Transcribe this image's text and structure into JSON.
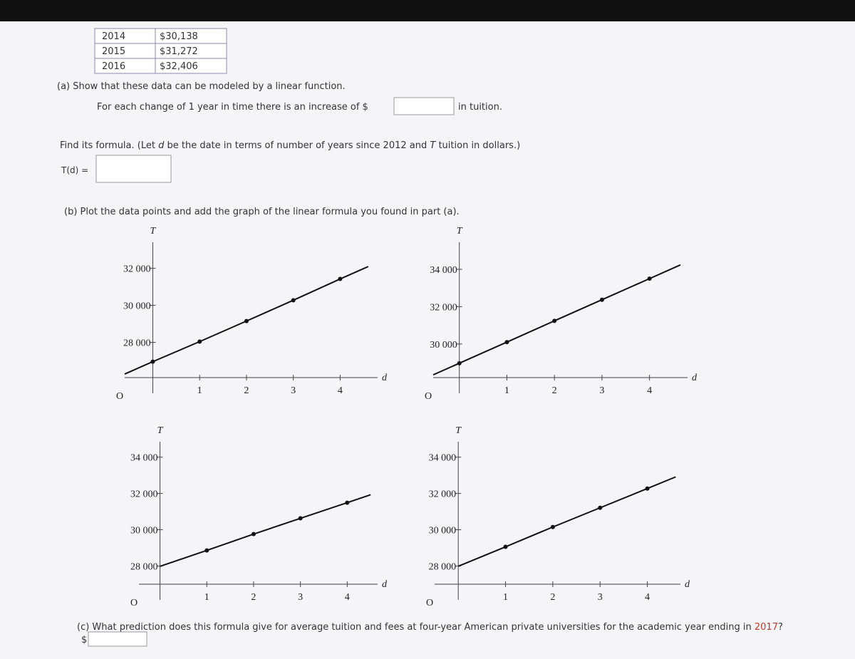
{
  "table": {
    "rows": [
      [
        "2014",
        "$30,138"
      ],
      [
        "2015",
        "$31,272"
      ],
      [
        "2016",
        "$32,406"
      ]
    ]
  },
  "part_a": {
    "prompt": "(a) Show that these data can be modeled by a linear function.",
    "increase_prefix": "For each change of 1 year in time there is an increase of $",
    "increase_suffix": "in tuition.",
    "formula_prompt": [
      "Find its formula. (Let ",
      "d",
      " be the date in terms of number of years since 2012 and ",
      "T",
      " tuition in dollars.)"
    ],
    "formula_label": "T(d) ="
  },
  "part_b": {
    "prompt": "(b) Plot the data points and add the graph of the linear formula you found in part (a).",
    "graphs": [
      {
        "x_label": "d",
        "y_label": "T",
        "origin_label": "O",
        "xlim": [
          -0.6,
          4.8
        ],
        "ylim": [
          26100,
          33400
        ],
        "xticks": [
          1,
          2,
          3,
          4
        ],
        "yticks": [
          {
            "value": 28000,
            "label": "28 000"
          },
          {
            "value": 30000,
            "label": "30 000"
          },
          {
            "value": 32000,
            "label": "32 000"
          }
        ],
        "points": {
          "x": [
            0,
            1,
            2,
            3,
            4
          ],
          "y": [
            26960,
            28040,
            29150,
            30270,
            31420
          ]
        }
      },
      {
        "x_label": "d",
        "y_label": "T",
        "origin_label": "O",
        "xlim": [
          -0.55,
          4.8
        ],
        "ylim": [
          28200,
          35450
        ],
        "xticks": [
          1,
          2,
          3,
          4
        ],
        "yticks": [
          {
            "value": 30000,
            "label": "30 000"
          },
          {
            "value": 32000,
            "label": "32 000"
          },
          {
            "value": 34000,
            "label": "34 000"
          }
        ],
        "points": {
          "x": [
            0,
            1,
            2,
            3,
            4
          ],
          "y": [
            28970,
            30100,
            31240,
            32370,
            33500
          ]
        }
      },
      {
        "x_label": "d",
        "y_label": "T",
        "origin_label": "O",
        "xlim": [
          -0.45,
          4.65
        ],
        "ylim": [
          27000,
          34850
        ],
        "xticks": [
          1,
          2,
          3,
          4
        ],
        "yticks": [
          {
            "value": 28000,
            "label": "28 000"
          },
          {
            "value": 30000,
            "label": "30 000"
          },
          {
            "value": 32000,
            "label": "32 000"
          },
          {
            "value": 34000,
            "label": "34 000"
          }
        ],
        "points": {
          "x": [
            1,
            2,
            3,
            4
          ],
          "y": [
            28860,
            29760,
            30630,
            31490
          ]
        }
      },
      {
        "x_label": "d",
        "y_label": "T",
        "origin_label": "O",
        "xlim": [
          -0.5,
          4.7
        ],
        "ylim": [
          27000,
          34850
        ],
        "xticks": [
          1,
          2,
          3,
          4
        ],
        "yticks": [
          {
            "value": 28000,
            "label": "28 000"
          },
          {
            "value": 30000,
            "label": "30 000"
          },
          {
            "value": 32000,
            "label": "32 000"
          },
          {
            "value": 34000,
            "label": "34 000"
          }
        ],
        "points": {
          "x": [
            1,
            2,
            3,
            4
          ],
          "y": [
            29060,
            30150,
            31210,
            32270
          ]
        }
      }
    ]
  },
  "part_c": {
    "prompt_prefix": "(c) What prediction does this formula give for average tuition and fees at four-year American private universities for the academic year ending in ",
    "year": "2017",
    "prompt_suffix": "?",
    "currency": "$"
  }
}
